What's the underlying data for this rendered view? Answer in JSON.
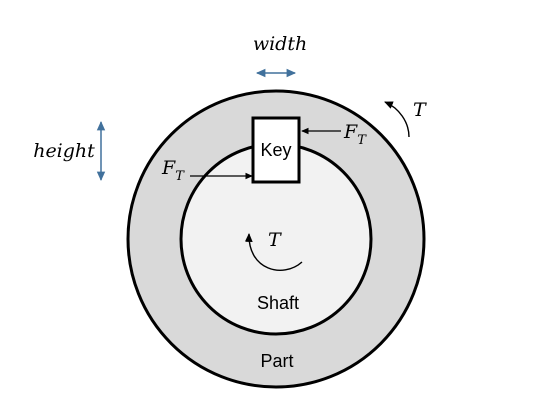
{
  "labels": {
    "width": "width",
    "height": "height",
    "key": "Key",
    "shaft": "Shaft",
    "part": "Part",
    "torque": "T",
    "force_main": "F",
    "force_sub": "T"
  },
  "colors": {
    "part_fill": "#d9d9d9",
    "shaft_fill": "#f2f2f2",
    "key_fill": "#ffffff",
    "outline": "#000000",
    "dimension_arrow": "#41719c"
  }
}
